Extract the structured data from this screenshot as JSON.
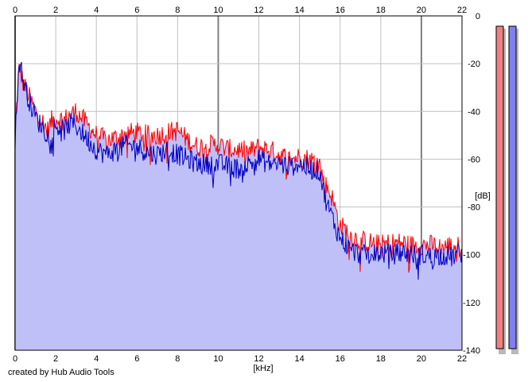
{
  "footer": {
    "credit": "created by Hub Audio Tools"
  },
  "chart_data": {
    "type": "area",
    "title": "",
    "xlabel": "[kHz]",
    "ylabel": "[dB]",
    "xlim": [
      0,
      22
    ],
    "ylim": [
      -140,
      0
    ],
    "x_ticks": [
      0,
      2,
      4,
      6,
      8,
      10,
      12,
      14,
      16,
      18,
      20,
      22
    ],
    "y_ticks": [
      0,
      -20,
      -40,
      -60,
      -80,
      -100,
      -120,
      -140
    ],
    "grid": true,
    "legend": "none",
    "colors": {
      "fill": "#c0c0f8",
      "series_a": "#ff0000",
      "series_b": "#0000c0",
      "grid_minor": "#c0c0c0",
      "grid_major": "#808080",
      "meter_left": "#f08080",
      "meter_right": "#8080f0"
    },
    "series": [
      {
        "color": "#ff0000",
        "x": [
          0.0,
          0.2,
          0.4,
          0.6,
          0.8,
          1.0,
          1.2,
          1.4,
          1.6,
          1.8,
          2.0,
          2.2,
          2.4,
          2.6,
          2.8,
          3.0,
          3.2,
          3.4,
          3.6,
          3.8,
          4.0,
          4.5,
          5.0,
          5.5,
          6.0,
          6.5,
          7.0,
          7.5,
          8.0,
          8.5,
          9.0,
          9.5,
          10.0,
          10.5,
          11.0,
          11.5,
          12.0,
          12.5,
          13.0,
          13.5,
          14.0,
          14.5,
          15.0,
          15.2,
          15.4,
          15.6,
          15.8,
          16.0,
          16.2,
          16.5,
          17.0,
          17.5,
          18.0,
          18.5,
          19.0,
          19.5,
          20.0,
          20.5,
          21.0,
          21.5,
          22.0
        ],
        "values": [
          -48,
          -22,
          -28,
          -32,
          -36,
          -40,
          -42,
          -45,
          -48,
          -44,
          -43,
          -43,
          -44,
          -42,
          -41,
          -40,
          -42,
          -44,
          -46,
          -48,
          -50,
          -52,
          -51,
          -49,
          -49,
          -50,
          -50,
          -49,
          -48,
          -52,
          -55,
          -54,
          -54,
          -56,
          -56,
          -57,
          -55,
          -56,
          -58,
          -60,
          -59,
          -60,
          -62,
          -70,
          -72,
          -76,
          -82,
          -88,
          -89,
          -92,
          -94,
          -95,
          -96,
          -95,
          -95,
          -96,
          -96,
          -96,
          -97,
          -96,
          -97
        ]
      },
      {
        "color": "#0000c0",
        "x": [
          0.0,
          0.2,
          0.4,
          0.6,
          0.8,
          1.0,
          1.2,
          1.4,
          1.6,
          1.8,
          2.0,
          2.2,
          2.4,
          2.6,
          2.8,
          3.0,
          3.2,
          3.4,
          3.6,
          3.8,
          4.0,
          4.5,
          5.0,
          5.5,
          6.0,
          6.5,
          7.0,
          7.5,
          8.0,
          8.5,
          9.0,
          9.5,
          10.0,
          10.5,
          11.0,
          11.5,
          12.0,
          12.5,
          13.0,
          13.5,
          14.0,
          14.5,
          15.0,
          15.2,
          15.4,
          15.6,
          15.8,
          16.0,
          16.2,
          16.5,
          17.0,
          17.5,
          18.0,
          18.5,
          19.0,
          19.5,
          20.0,
          20.5,
          21.0,
          21.5,
          22.0
        ],
        "values": [
          -52,
          -18,
          -27,
          -33,
          -38,
          -42,
          -45,
          -47,
          -50,
          -47,
          -46,
          -47,
          -48,
          -46,
          -45,
          -46,
          -48,
          -50,
          -52,
          -54,
          -56,
          -58,
          -56,
          -54,
          -55,
          -57,
          -58,
          -56,
          -58,
          -60,
          -62,
          -62,
          -62,
          -63,
          -64,
          -62,
          -60,
          -62,
          -62,
          -63,
          -62,
          -64,
          -65,
          -74,
          -80,
          -84,
          -89,
          -93,
          -95,
          -98,
          -100,
          -100,
          -99,
          -100,
          -99,
          -100,
          -100,
          -101,
          -100,
          -101,
          -99
        ]
      }
    ]
  }
}
